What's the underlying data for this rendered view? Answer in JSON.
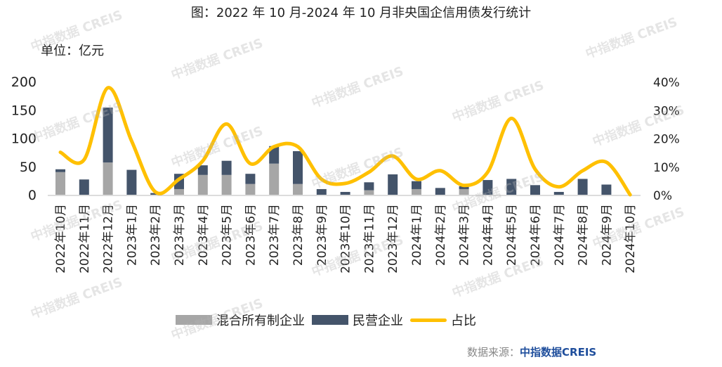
{
  "title": "图：2022 年 10 月-2024 年 10 月非央国企信用债发行统计",
  "unit_label": "单位：亿元",
  "source_label": "数据来源：",
  "source_name": "中指数据CREIS",
  "watermark": "中指数据 CREIS",
  "colors": {
    "mixed": "#a6a6a6",
    "private": "#44546a",
    "ratio": "#ffc000"
  },
  "chart_data": {
    "type": "bar",
    "stacked": true,
    "categories": [
      "2022年10月",
      "2022年11月",
      "2022年12月",
      "2023年1月",
      "2023年2月",
      "2023年3月",
      "2023年4月",
      "2023年5月",
      "2023年6月",
      "2023年7月",
      "2023年8月",
      "2023年9月",
      "2023年10月",
      "2023年11月",
      "2023年12月",
      "2024年1月",
      "2024年2月",
      "2024年3月",
      "2024年4月",
      "2024年5月",
      "2024年6月",
      "2024年7月",
      "2024年8月",
      "2024年9月",
      "2024年10月"
    ],
    "series": [
      {
        "name": "混合所有制企业",
        "type": "bar",
        "axis": "left",
        "values": [
          40,
          0,
          57,
          0,
          0,
          10,
          35,
          35,
          19,
          55,
          19,
          0,
          0,
          8,
          0,
          10,
          0,
          10,
          0,
          0,
          0,
          0,
          0,
          0,
          0
        ]
      },
      {
        "name": "民营企业",
        "type": "bar",
        "axis": "left",
        "values": [
          5,
          27,
          97,
          44,
          3,
          27,
          17,
          25,
          18,
          31,
          58,
          10,
          5,
          14,
          36,
          14,
          12,
          5,
          26,
          28,
          17,
          5,
          28,
          18,
          0
        ]
      },
      {
        "name": "占比",
        "type": "line",
        "axis": "right",
        "values": [
          15,
          12.4,
          37.8,
          19,
          1,
          5.5,
          12,
          25,
          11,
          17,
          17,
          5.5,
          4,
          8,
          13.7,
          5.5,
          8.5,
          3.3,
          8,
          27,
          9,
          2.8,
          8.5,
          11.5,
          0
        ]
      }
    ],
    "y_left": {
      "range": [
        0,
        200
      ],
      "ticks": [
        "0",
        "50",
        "100",
        "150",
        "200"
      ]
    },
    "y_right": {
      "range": [
        0,
        40
      ],
      "ticks": [
        "0%",
        "10%",
        "20%",
        "30%",
        "40%"
      ]
    },
    "legend_position": "bottom",
    "grid": false
  }
}
